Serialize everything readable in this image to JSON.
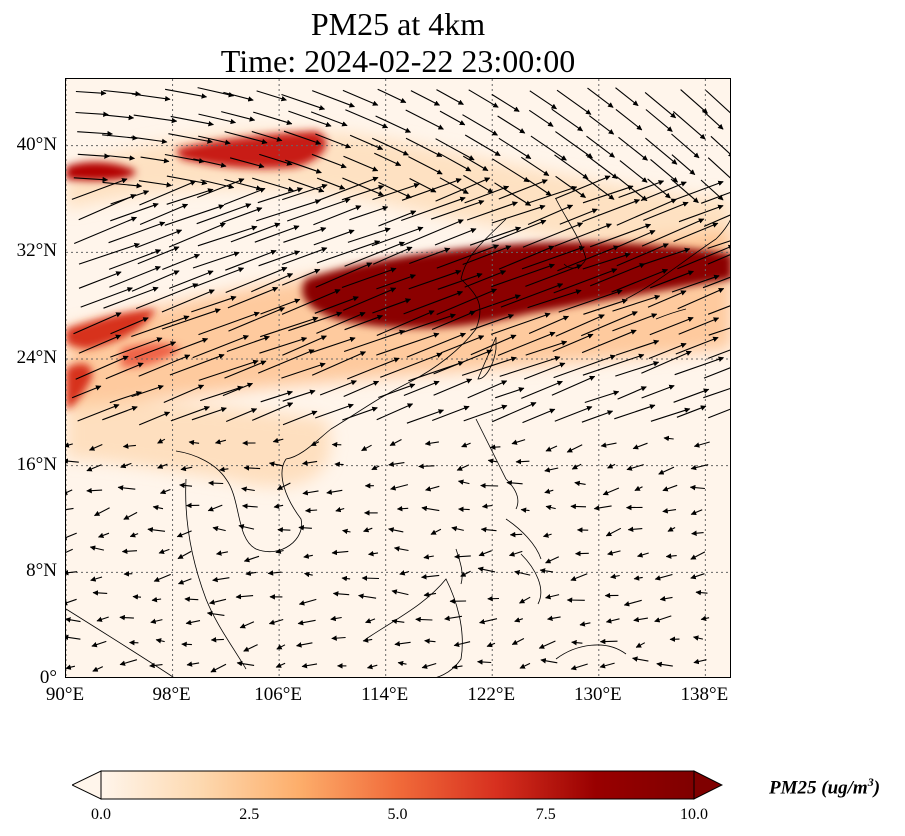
{
  "title": {
    "line1": "PM25 at 4km",
    "line2": "Time: 2024-02-22 23:00:00"
  },
  "map": {
    "extent": {
      "lon": [
        90,
        140
      ],
      "lat": [
        0,
        45
      ]
    },
    "lat_ticks": [
      {
        "value": 0,
        "label": "0°"
      },
      {
        "value": 8,
        "label": "8°N"
      },
      {
        "value": 16,
        "label": "16°N"
      },
      {
        "value": 24,
        "label": "24°N"
      },
      {
        "value": 32,
        "label": "32°N"
      },
      {
        "value": 40,
        "label": "40°N"
      }
    ],
    "lon_ticks": [
      {
        "value": 90,
        "label": "90°E"
      },
      {
        "value": 98,
        "label": "98°E"
      },
      {
        "value": 106,
        "label": "106°E"
      },
      {
        "value": 114,
        "label": "114°E"
      },
      {
        "value": 122,
        "label": "122°E"
      },
      {
        "value": 130,
        "label": "130°E"
      },
      {
        "value": 138,
        "label": "138°E"
      }
    ],
    "gridlines": "dotted",
    "background_color": "#fff5eb",
    "wind_arrow_color": "#000000"
  },
  "colorbar": {
    "title": "PM25 (ug/m",
    "title_exponent": "3",
    "title_suffix": ")",
    "colormap": "OrRd",
    "range": [
      0,
      10
    ],
    "extend": "both",
    "ticks": [
      {
        "value": 0,
        "label": "0.0"
      },
      {
        "value": 2.5,
        "label": "2.5"
      },
      {
        "value": 5,
        "label": "5.0"
      },
      {
        "value": 7.5,
        "label": "7.5"
      },
      {
        "value": 10,
        "label": "10.0"
      }
    ],
    "stops": [
      "#fff5eb",
      "#fdd9b0",
      "#fdae6b",
      "#f16b3a",
      "#d7301f",
      "#990000",
      "#7f0000"
    ]
  }
}
